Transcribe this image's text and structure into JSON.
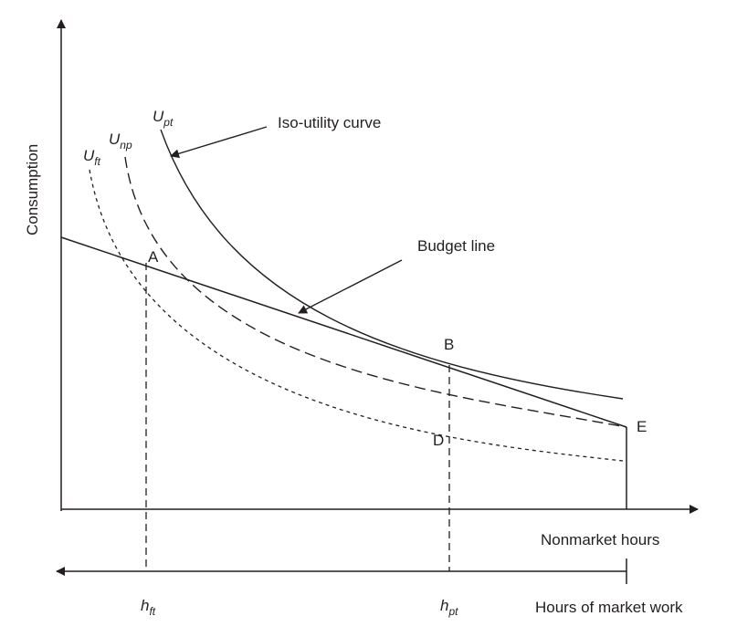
{
  "axes": {
    "y_label": "Consumption",
    "x_label": "Nonmarket hours",
    "work_label": "Hours of market work"
  },
  "curves": {
    "u_pt": {
      "base": "U",
      "sub": "pt"
    },
    "u_np": {
      "base": "U",
      "sub": "np"
    },
    "u_ft": {
      "base": "U",
      "sub": "ft"
    }
  },
  "annotations": {
    "iso_utility": "Iso-utility curve",
    "budget_line": "Budget line"
  },
  "points": {
    "a": "A",
    "b": "B",
    "d": "D",
    "e": "E"
  },
  "ticks": {
    "h_ft": {
      "base": "h",
      "sub": "ft"
    },
    "h_pt": {
      "base": "h",
      "sub": "pt"
    }
  },
  "colors": {
    "ink": "#231f20",
    "background": "#ffffff"
  }
}
